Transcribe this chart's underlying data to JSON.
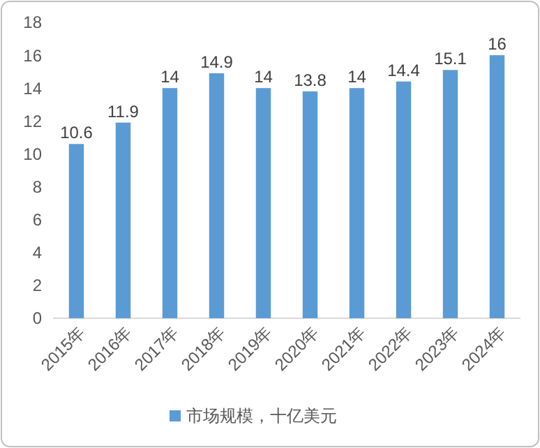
{
  "chart_data": {
    "type": "bar",
    "categories": [
      "2015年",
      "2016年",
      "2017年",
      "2018年",
      "2019年",
      "2020年",
      "2021年",
      "2022年",
      "2023年",
      "2024年"
    ],
    "series": [
      {
        "name": "市场规模，十亿美元",
        "color": "#5b9bd5",
        "values": [
          10.6,
          11.9,
          14,
          14.9,
          14,
          13.8,
          14,
          14.4,
          15.1,
          16
        ]
      }
    ],
    "ylim": [
      0,
      18
    ],
    "yticks": [
      0,
      2,
      4,
      6,
      8,
      10,
      12,
      14,
      16,
      18
    ],
    "grid": false,
    "data_labels": true,
    "legend": "bottom"
  }
}
